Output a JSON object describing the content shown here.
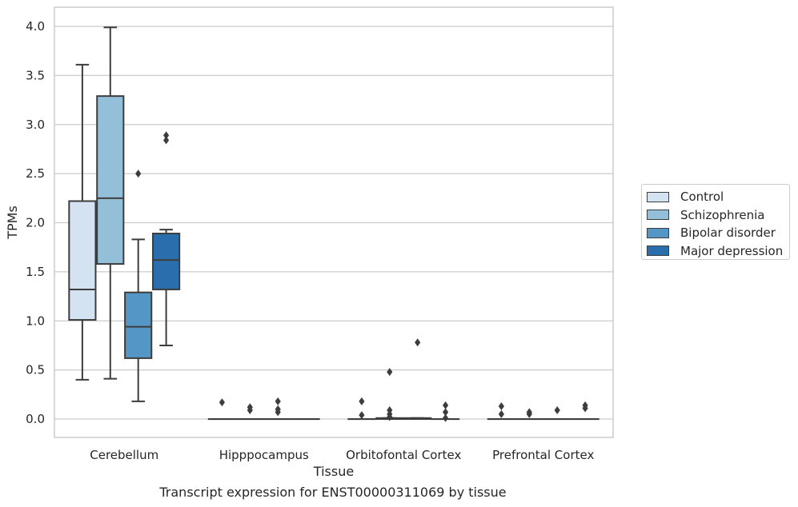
{
  "caption": "Transcript expression for ENST00000311069 by tissue",
  "chart_data": {
    "type": "box",
    "title": "",
    "xlabel": "Tissue",
    "ylabel": "TPMs",
    "ylim": [
      -0.19,
      4.2
    ],
    "yticks": [
      "0.0",
      "0.5",
      "1.0",
      "1.5",
      "2.0",
      "2.5",
      "3.0",
      "3.5",
      "4.0"
    ],
    "grid": "horizontal",
    "legend_position": "right",
    "categories": [
      "Cerebellum",
      "Hipppocampus",
      "Orbitofontal Cortex",
      "Prefrontal Cortex"
    ],
    "series": [
      {
        "name": "Control",
        "color": "#d3e3f1",
        "boxes": [
          {
            "whislo": 0.4,
            "q1": 1.01,
            "med": 1.32,
            "q3": 2.22,
            "whishi": 3.61,
            "fliers": []
          },
          {
            "whislo": 0,
            "q1": 0,
            "med": 0,
            "q3": 0,
            "whishi": 0,
            "fliers": [
              0.17
            ]
          },
          {
            "whislo": 0,
            "q1": 0,
            "med": 0,
            "q3": 0,
            "whishi": 0,
            "fliers": [
              0.04,
              0.18
            ]
          },
          {
            "whislo": 0,
            "q1": 0,
            "med": 0,
            "q3": 0,
            "whishi": 0,
            "fliers": [
              0.05,
              0.13
            ]
          }
        ]
      },
      {
        "name": "Schizophrenia",
        "color": "#94bfd8",
        "boxes": [
          {
            "whislo": 0.41,
            "q1": 1.58,
            "med": 2.25,
            "q3": 3.29,
            "whishi": 3.99,
            "fliers": []
          },
          {
            "whislo": 0,
            "q1": 0,
            "med": 0,
            "q3": 0,
            "whishi": 0,
            "fliers": [
              0.09,
              0.12
            ]
          },
          {
            "whislo": 0,
            "q1": 0,
            "med": 0,
            "q3": 0.01,
            "whishi": 0.01,
            "fliers": [
              0.02,
              0.05,
              0.09,
              0.48
            ]
          },
          {
            "whislo": 0,
            "q1": 0,
            "med": 0,
            "q3": 0,
            "whishi": 0,
            "fliers": [
              0.05,
              0.07
            ]
          }
        ]
      },
      {
        "name": "Bipolar disorder",
        "color": "#5497c6",
        "boxes": [
          {
            "whislo": 0.18,
            "q1": 0.62,
            "med": 0.94,
            "q3": 1.29,
            "whishi": 1.83,
            "fliers": [
              2.5
            ]
          },
          {
            "whislo": 0,
            "q1": 0,
            "med": 0,
            "q3": 0,
            "whishi": 0,
            "fliers": [
              0.07,
              0.1,
              0.18
            ]
          },
          {
            "whislo": 0,
            "q1": 0,
            "med": 0,
            "q3": 0.01,
            "whishi": 0.01,
            "fliers": [
              0.78
            ]
          },
          {
            "whislo": 0,
            "q1": 0,
            "med": 0,
            "q3": 0,
            "whishi": 0,
            "fliers": [
              0.09
            ]
          }
        ]
      },
      {
        "name": "Major depression",
        "color": "#2a6ead",
        "boxes": [
          {
            "whislo": 0.75,
            "q1": 1.32,
            "med": 1.62,
            "q3": 1.89,
            "whishi": 1.93,
            "fliers": [
              2.84,
              2.89
            ]
          },
          {
            "whislo": 0,
            "q1": 0,
            "med": 0,
            "q3": 0,
            "whishi": 0,
            "fliers": []
          },
          {
            "whislo": 0,
            "q1": 0,
            "med": 0,
            "q3": 0,
            "whishi": 0,
            "fliers": [
              0.01,
              0.07,
              0.14
            ]
          },
          {
            "whislo": 0,
            "q1": 0,
            "med": 0,
            "q3": 0,
            "whishi": 0,
            "fliers": [
              0.11,
              0.14
            ]
          }
        ]
      }
    ]
  }
}
